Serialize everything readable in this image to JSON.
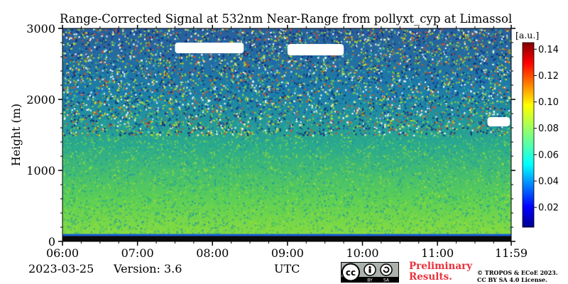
{
  "chart_data": {
    "type": "heatmap",
    "title": "Range-Corrected Signal at 532nm Near-Range from pollyxt_cyp at Limassol",
    "xlabel": "UTC",
    "ylabel": "Height (m)",
    "x_tick_labels": [
      "06:00",
      "07:00",
      "08:00",
      "09:00",
      "10:00",
      "11:00",
      "11:59"
    ],
    "x_range": [
      "06:00",
      "11:59"
    ],
    "y_ticks": [
      0,
      1000,
      2000,
      3000
    ],
    "ylim": [
      0,
      3000
    ],
    "colorbar": {
      "label": "[a.u.]",
      "ticks": [
        0.02,
        0.04,
        0.06,
        0.08,
        0.1,
        0.12,
        0.14
      ],
      "tick_labels": [
        "0.02",
        "0.04",
        "0.06",
        "0.08",
        "0.10",
        "0.12",
        "0.14"
      ],
      "range": [
        0.005,
        0.145
      ],
      "colormap": "jet"
    },
    "features": [
      {
        "description": "dark near-ground signal",
        "height_m": [
          0,
          90
        ]
      },
      {
        "description": "bright signal layer",
        "height_m": [
          90,
          1500
        ],
        "value": 0.07
      },
      {
        "description": "noisy upper region",
        "height_m": [
          1500,
          3000
        ],
        "value": 0.04
      },
      {
        "description": "cloud (saturated white)",
        "time": [
          "07:30",
          "08:25"
        ],
        "height_m": [
          2650,
          2800
        ]
      },
      {
        "description": "cloud (saturated white)",
        "time": [
          "09:00",
          "09:45"
        ],
        "height_m": [
          2620,
          2780
        ]
      },
      {
        "description": "cloud (saturated white)",
        "time": [
          "11:40",
          "11:58"
        ],
        "height_m": [
          1620,
          1750
        ]
      }
    ]
  },
  "footer": {
    "date": "2023-03-25",
    "version": "Version: 3.6",
    "preliminary_line1": "Preliminary",
    "preliminary_line2": "Results.",
    "copyright_line1": "© TROPOS & ECoE 2023.",
    "copyright_line2": "CC BY SA 4.0 License.",
    "license_badge": {
      "cc": "cc",
      "by": "BY",
      "sa": "SA"
    }
  }
}
